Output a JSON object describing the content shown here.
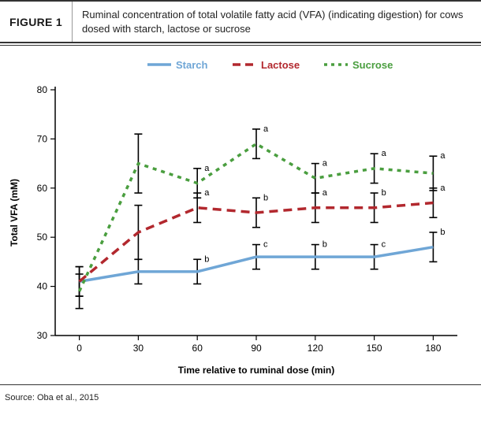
{
  "figure_label": "FIGURE 1",
  "caption": "Ruminal concentration of total volatile fatty acid (VFA) (indicating digestion) for cows dosed with starch, lactose or sucrose",
  "source": "Source: Oba et al., 2015",
  "chart": {
    "type": "line",
    "background_color": "#ffffff",
    "plot_border_color": "#000000",
    "xlabel": "Time relative to ruminal dose (min)",
    "ylabel": "Total VFA (mM)",
    "label_fontsize": 12,
    "x_categories": [
      "0",
      "30",
      "60",
      "90",
      "120",
      "150",
      "180"
    ],
    "ylim": [
      30,
      80
    ],
    "ytick_step": 10,
    "yticks": [
      30,
      40,
      50,
      60,
      70,
      80
    ],
    "legend_position": "top-center",
    "line_width": 3.5,
    "errorbar_color": "#000000",
    "errorbar_width": 1.6,
    "errorbar_cap": 5,
    "series": [
      {
        "name": "Starch",
        "color": "#6fa6d6",
        "dash": "solid",
        "values": [
          41,
          43,
          43,
          46,
          46,
          46,
          48
        ],
        "errors": [
          3.0,
          2.5,
          2.5,
          2.5,
          2.5,
          2.5,
          3.0
        ],
        "labels": [
          "",
          "",
          "b",
          "c",
          "b",
          "c",
          "b"
        ]
      },
      {
        "name": "Lactose",
        "color": "#b2282e",
        "dash": "dashed",
        "values": [
          41,
          51,
          56,
          55,
          56,
          56,
          57
        ],
        "errors": [
          3.0,
          5.5,
          3.0,
          3.0,
          3.0,
          3.0,
          3.0
        ],
        "labels": [
          "",
          "",
          "a",
          "b",
          "a",
          "b",
          "a"
        ]
      },
      {
        "name": "Sucrose",
        "color": "#4a9e3f",
        "dash": "dotted",
        "values": [
          39,
          65,
          61,
          69,
          62,
          64,
          63
        ],
        "errors": [
          3.5,
          6.0,
          3.0,
          3.0,
          3.0,
          3.0,
          3.5
        ],
        "labels": [
          "",
          "",
          "a",
          "a",
          "a",
          "a",
          "a"
        ]
      }
    ]
  }
}
